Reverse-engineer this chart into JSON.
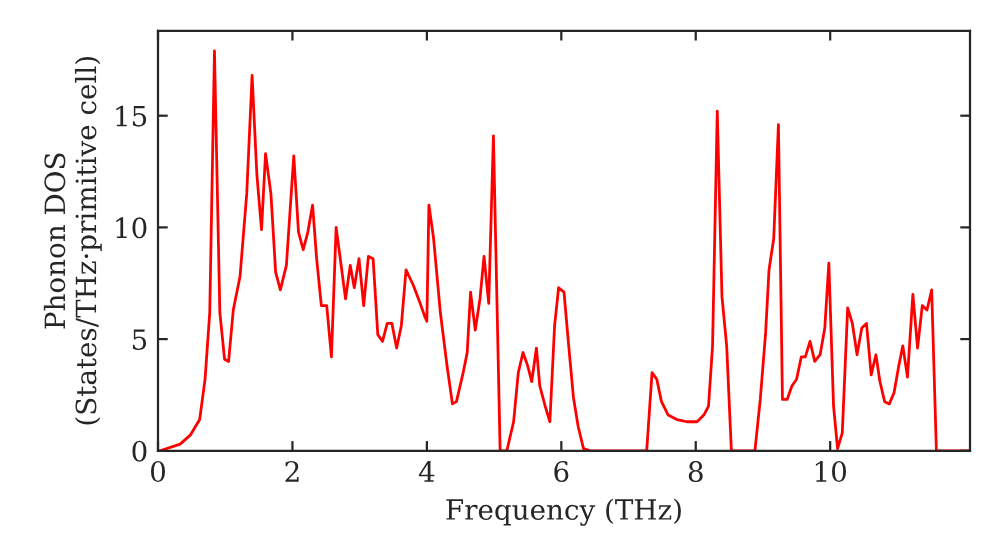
{
  "chart_data": {
    "type": "line",
    "xlabel": "Frequency (THz)",
    "ylabel": "Phonon DOS\n(States/THz·primitive cell)",
    "xlim": [
      0,
      12.08
    ],
    "ylim": [
      0,
      18.8
    ],
    "xticks": [
      0,
      2,
      4,
      6,
      8,
      10
    ],
    "yticks": [
      0,
      5,
      10,
      15
    ],
    "grid": false,
    "marker": "none",
    "line_style": "solid",
    "series": [
      {
        "color": "#ff0000",
        "x": [
          0.03,
          0.33,
          0.48,
          0.62,
          0.7,
          0.77,
          0.84,
          0.92,
          0.99,
          1.05,
          1.12,
          1.22,
          1.32,
          1.4,
          1.47,
          1.54,
          1.6,
          1.68,
          1.75,
          1.82,
          1.91,
          2.02,
          2.09,
          2.16,
          2.23,
          2.3,
          2.36,
          2.43,
          2.51,
          2.58,
          2.65,
          2.72,
          2.79,
          2.86,
          2.92,
          2.99,
          3.06,
          3.13,
          3.2,
          3.27,
          3.34,
          3.41,
          3.48,
          3.55,
          3.62,
          3.69,
          3.8,
          3.9,
          3.97,
          4.0,
          4.03,
          4.1,
          4.2,
          4.3,
          4.38,
          4.44,
          4.54,
          4.6,
          4.65,
          4.72,
          4.79,
          4.85,
          4.92,
          4.99,
          5.09,
          5.19,
          5.29,
          5.36,
          5.43,
          5.5,
          5.56,
          5.63,
          5.68,
          5.76,
          5.83,
          5.9,
          5.96,
          6.04,
          6.11,
          6.18,
          6.25,
          6.33,
          6.43,
          7.27,
          7.35,
          7.42,
          7.49,
          7.59,
          7.72,
          7.87,
          8.02,
          8.12,
          8.19,
          8.25,
          8.32,
          8.39,
          8.46,
          8.53,
          8.88,
          8.96,
          9.04,
          9.09,
          9.16,
          9.23,
          9.29,
          9.36,
          9.43,
          9.5,
          9.57,
          9.63,
          9.7,
          9.77,
          9.85,
          9.92,
          9.98,
          10.05,
          10.11,
          10.18,
          10.26,
          10.33,
          10.4,
          10.47,
          10.54,
          10.61,
          10.68,
          10.74,
          10.81,
          10.88,
          10.95,
          11.02,
          11.08,
          11.15,
          11.23,
          11.3,
          11.37,
          11.44,
          11.51,
          11.58,
          12.08
        ],
        "values": [
          0,
          0.3,
          0.7,
          1.4,
          3.2,
          6.2,
          17.9,
          6.2,
          4.1,
          4.0,
          6.3,
          7.8,
          11.5,
          16.8,
          12.4,
          9.9,
          13.3,
          11.5,
          8.0,
          7.2,
          8.3,
          13.2,
          9.8,
          9.0,
          9.8,
          11.0,
          8.6,
          6.5,
          6.5,
          4.2,
          10.0,
          8.4,
          6.8,
          8.3,
          7.3,
          8.6,
          6.5,
          8.7,
          8.6,
          5.2,
          4.9,
          5.7,
          5.7,
          4.6,
          5.6,
          8.1,
          7.4,
          6.6,
          6.0,
          5.8,
          11.0,
          9.5,
          6.2,
          3.8,
          2.1,
          2.2,
          3.5,
          4.4,
          7.1,
          5.4,
          6.8,
          8.7,
          6.6,
          14.1,
          0,
          0,
          1.3,
          3.5,
          4.4,
          3.8,
          3.1,
          4.6,
          2.9,
          2.0,
          1.3,
          5.6,
          7.3,
          7.1,
          4.7,
          2.4,
          1.1,
          0.1,
          0,
          0,
          3.5,
          3.2,
          2.2,
          1.6,
          1.4,
          1.3,
          1.3,
          1.6,
          2.0,
          4.7,
          15.2,
          6.9,
          4.7,
          0,
          0,
          2.3,
          5.3,
          8.1,
          9.5,
          14.6,
          2.3,
          2.3,
          2.9,
          3.2,
          4.2,
          4.2,
          4.9,
          4.0,
          4.3,
          5.5,
          8.4,
          2.0,
          0.1,
          0.8,
          6.4,
          5.7,
          4.3,
          5.5,
          5.7,
          3.4,
          4.3,
          3.1,
          2.2,
          2.1,
          2.6,
          3.8,
          4.7,
          3.3,
          7.0,
          4.6,
          6.5,
          6.3,
          7.2,
          0,
          0
        ]
      }
    ]
  }
}
